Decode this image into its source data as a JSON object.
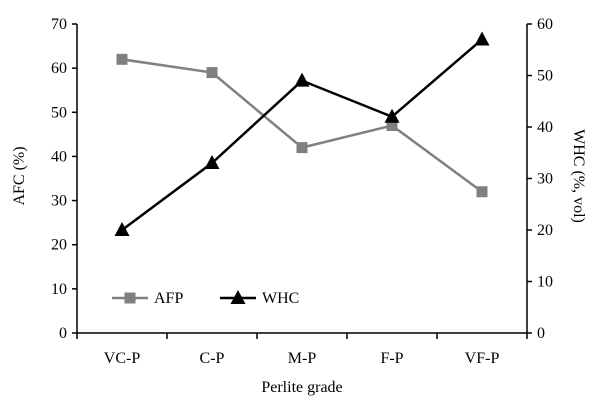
{
  "chart_data": {
    "type": "line",
    "title": "",
    "xlabel": "Perlite grade",
    "ylabel_left": "AFC (%)",
    "ylabel_right": "WHC (%, vol)",
    "categories": [
      "VC-P",
      "C-P",
      "M-P",
      "F-P",
      "VF-P"
    ],
    "y_left_ticks": [
      "0",
      "10",
      "20",
      "30",
      "40",
      "50",
      "60",
      "70"
    ],
    "y_right_ticks": [
      "0",
      "10",
      "20",
      "30",
      "40",
      "50",
      "60"
    ],
    "ylim_left": [
      0,
      70
    ],
    "ylim_right": [
      0,
      60
    ],
    "grid": false,
    "legend_position": "bottom-left",
    "series": [
      {
        "name": "AFP",
        "axis": "left",
        "marker": "square",
        "color": "#808080",
        "values": [
          62,
          59,
          42,
          47,
          32
        ]
      },
      {
        "name": "WHC",
        "axis": "right",
        "marker": "triangle",
        "color": "#000000",
        "values": [
          20,
          33,
          49,
          42,
          57
        ]
      }
    ]
  }
}
